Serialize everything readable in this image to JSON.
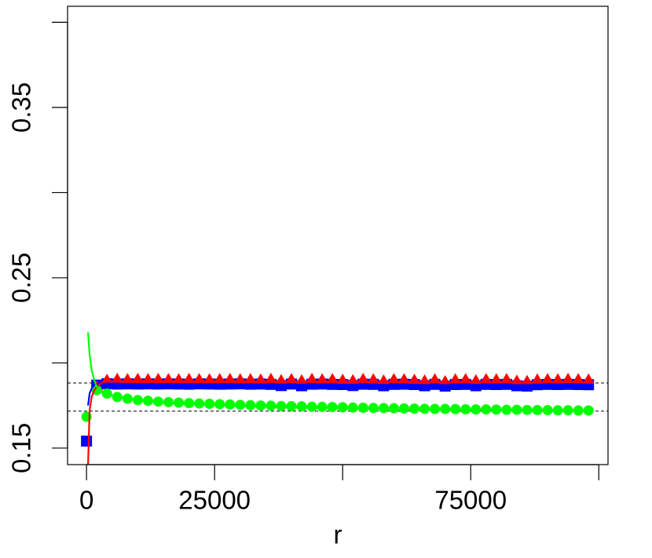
{
  "chart_data": {
    "type": "scatter",
    "xlabel": "r",
    "xlim": [
      -3700,
      101800
    ],
    "ylim": [
      0.1403,
      0.4094
    ],
    "xticks": [
      0,
      25000,
      75000
    ],
    "xminor_ticks": [
      50000,
      100000
    ],
    "yticks": [
      0.15,
      0.25,
      0.35
    ],
    "yminor_ticks": [
      0.2,
      0.3,
      0.4
    ],
    "hlines": [
      0.1882,
      0.1717
    ],
    "x": [
      0,
      2000,
      4000,
      6000,
      8000,
      10000,
      12000,
      14000,
      16000,
      18000,
      20000,
      22000,
      24000,
      26000,
      28000,
      30000,
      32000,
      34000,
      36000,
      38000,
      40000,
      42000,
      44000,
      46000,
      48000,
      50000,
      52000,
      54000,
      56000,
      58000,
      60000,
      62000,
      64000,
      66000,
      68000,
      70000,
      72000,
      74000,
      76000,
      78000,
      80000,
      82000,
      84000,
      86000,
      88000,
      90000,
      92000,
      94000,
      96000,
      98000
    ],
    "line_x": [
      300,
      600,
      1000,
      1500,
      2000,
      3000,
      4000,
      8000,
      12000,
      16000,
      20000,
      24000,
      28000,
      32000,
      36000,
      40000,
      44000,
      48000,
      52000,
      56000,
      60000,
      64000,
      68000,
      72000,
      76000,
      80000,
      84000,
      88000,
      92000,
      96000
    ],
    "series": [
      {
        "color": "#0000ff",
        "shape": "square",
        "values": [
          0.1541,
          0.187,
          0.1878,
          0.1876,
          0.1877,
          0.1876,
          0.1877,
          0.1876,
          0.1877,
          0.1876,
          0.1875,
          0.1877,
          0.1876,
          0.1875,
          0.1876,
          0.1877,
          0.1875,
          0.1876,
          0.1874,
          0.1867,
          0.1876,
          0.1866,
          0.1875,
          0.1876,
          0.1874,
          0.1873,
          0.1867,
          0.1875,
          0.1874,
          0.1866,
          0.1874,
          0.1875,
          0.1873,
          0.1866,
          0.1874,
          0.1864,
          0.1873,
          0.1874,
          0.1866,
          0.1874,
          0.1873,
          0.1874,
          0.1866,
          0.1864,
          0.1872,
          0.1874,
          0.1873,
          0.1874,
          0.1873,
          0.1872
        ],
        "line_values": [
          0.175,
          0.182,
          0.185,
          0.187,
          0.1875,
          0.188,
          0.188,
          0.1878,
          0.1877,
          0.1877,
          0.1876,
          0.1876,
          0.1875,
          0.1874,
          0.1874,
          0.1873,
          0.1873,
          0.1873,
          0.1872,
          0.1872,
          0.1871,
          0.1871,
          0.187,
          0.187,
          0.1872,
          0.187,
          0.1871,
          0.187,
          0.1872,
          0.1872
        ]
      },
      {
        "color": "#ff0000",
        "shape": "triangle",
        "values": [
          null,
          0.186,
          0.19,
          0.1905,
          0.1904,
          0.1905,
          0.1904,
          0.1905,
          0.1904,
          0.1903,
          0.1905,
          0.1904,
          0.1903,
          0.1904,
          0.1905,
          0.1903,
          0.1904,
          0.1902,
          0.1905,
          0.1898,
          0.1904,
          0.1897,
          0.1905,
          0.1903,
          0.1904,
          0.19,
          0.1898,
          0.1905,
          0.1903,
          0.1896,
          0.1904,
          0.1903,
          0.19,
          0.1896,
          0.1903,
          0.1892,
          0.1903,
          0.1904,
          0.1897,
          0.1904,
          0.1903,
          0.1904,
          0.1895,
          0.1893,
          0.1902,
          0.1904,
          0.1903,
          0.1905,
          0.1904,
          0.1902
        ],
        "line_values": [
          0.14,
          0.172,
          0.18,
          0.184,
          0.186,
          0.1885,
          0.189,
          0.1895,
          0.1895,
          0.1894,
          0.1894,
          0.1893,
          0.1893,
          0.1892,
          0.1892,
          0.1891,
          0.1891,
          0.189,
          0.189,
          0.1889,
          0.1889,
          0.189,
          0.1888,
          0.1887,
          0.1889,
          0.1886,
          0.1888,
          0.1887,
          0.1889,
          0.189
        ]
      },
      {
        "color": "#00ff00",
        "shape": "circle",
        "values": [
          0.1684,
          0.184,
          0.182,
          0.18,
          0.179,
          0.1782,
          0.1778,
          0.1773,
          0.177,
          0.1767,
          0.1764,
          0.1762,
          0.176,
          0.1758,
          0.1756,
          0.1754,
          0.1752,
          0.175,
          0.1749,
          0.1747,
          0.1746,
          0.1745,
          0.1743,
          0.1742,
          0.1741,
          0.174,
          0.1738,
          0.1737,
          0.1736,
          0.1735,
          0.1734,
          0.1733,
          0.1732,
          0.1731,
          0.173,
          0.173,
          0.1729,
          0.1728,
          0.1727,
          0.1727,
          0.1726,
          0.1725,
          0.1725,
          0.1724,
          0.1723,
          0.1723,
          0.1722,
          0.1722,
          0.1721,
          0.1721
        ],
        "line_values": [
          0.218,
          0.205,
          0.196,
          0.19,
          0.186,
          0.183,
          0.1818,
          0.179,
          0.1773,
          0.1764,
          0.1758,
          0.1752,
          0.1748,
          0.1745,
          0.1742,
          0.1739,
          0.1736,
          0.1734,
          0.1732,
          0.173,
          0.1729,
          0.1728,
          0.1727,
          0.1726,
          0.1725,
          0.1724,
          0.1723,
          0.1722,
          0.1722,
          0.1721
        ]
      }
    ]
  }
}
